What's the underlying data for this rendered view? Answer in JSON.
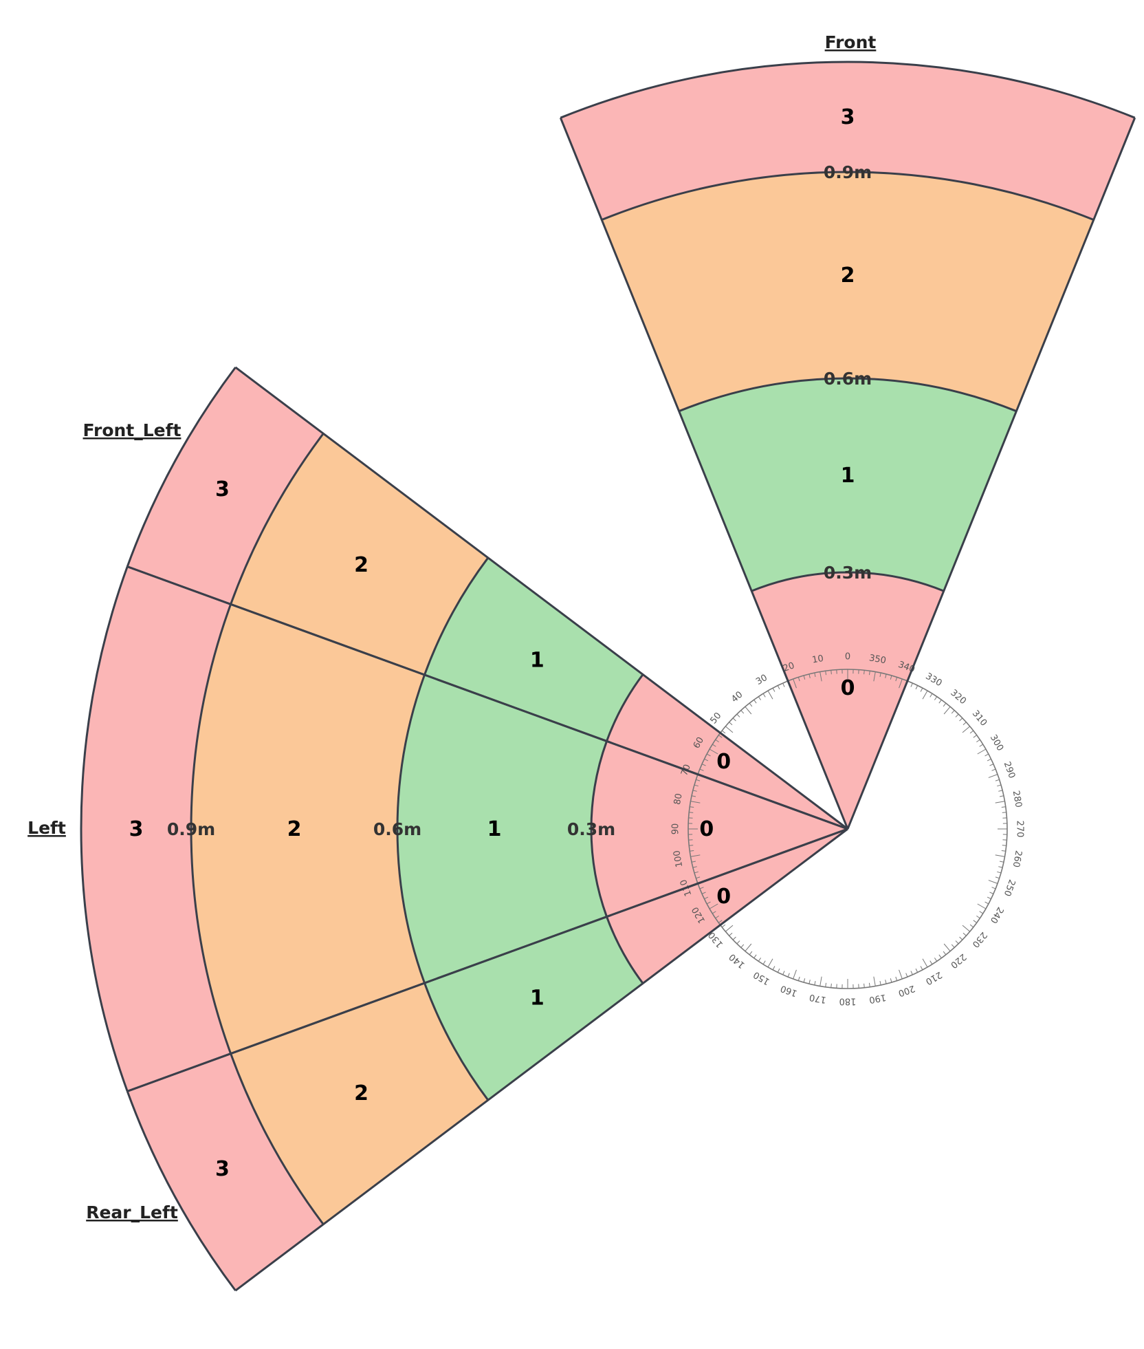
{
  "diagram": {
    "zone_colors": {
      "0": "#fbb6b6",
      "1": "#a9e0ad",
      "2": "#fbc898",
      "3": "#fbb6b6"
    },
    "zone_boundaries_m": [
      0.3,
      0.6,
      0.9,
      1.2
    ],
    "sectors": [
      {
        "name": "Front",
        "zones": [
          "0",
          "1",
          "2",
          "3"
        ],
        "distance_labels": [
          "0.3m",
          "0.6m",
          "0.9m"
        ]
      },
      {
        "name": "Front_Left",
        "zones": [
          "0",
          "1",
          "2",
          "3"
        ],
        "distance_labels": []
      },
      {
        "name": "Left",
        "zones": [
          "0",
          "1",
          "2",
          "3"
        ],
        "distance_labels": [
          "0.3m",
          "0.6m",
          "0.9m"
        ]
      },
      {
        "name": "Rear_Left",
        "zones": [
          "0",
          "1",
          "2",
          "3"
        ],
        "distance_labels": []
      }
    ],
    "protractor": {
      "tick_labels": [
        "0",
        "10",
        "20",
        "30",
        "40",
        "50",
        "60",
        "70",
        "80",
        "90",
        "100",
        "110",
        "120",
        "130",
        "140",
        "150",
        "160",
        "170",
        "180",
        "190",
        "200",
        "210",
        "220",
        "230",
        "240",
        "250",
        "260",
        "270",
        "280",
        "290",
        "300",
        "310",
        "320",
        "330",
        "340",
        "350"
      ]
    }
  }
}
